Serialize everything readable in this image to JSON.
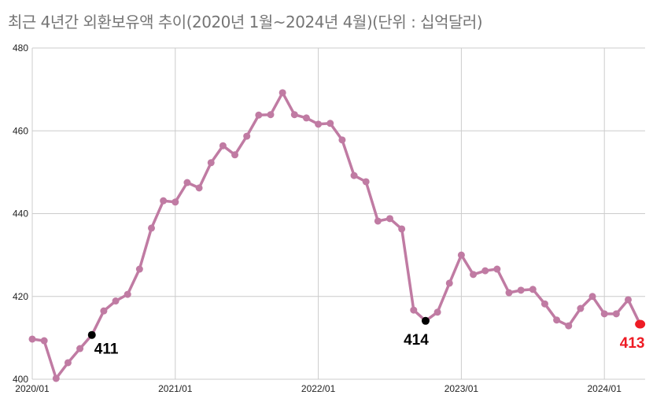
{
  "title": "최근 4년간 외환보유액 추이(2020년 1월~2024년 4월)(단위 : 십억달러)",
  "colors": {
    "line": "#c07ba3",
    "grid": "#cccccc",
    "highlight": "#000000",
    "latest": "#ee1c25"
  },
  "chart_data": {
    "type": "line",
    "title": "최근 4년간 외환보유액 추이(2020년 1월~2024년 4월)(단위 : 십억달러)",
    "xlabel": "",
    "ylabel": "",
    "ylim": [
      400,
      480
    ],
    "yticks": [
      400,
      420,
      440,
      460,
      480
    ],
    "xticks": [
      "2020/01",
      "2021/01",
      "2022/01",
      "2023/01",
      "2024/01"
    ],
    "grid": true,
    "legend": "none",
    "x": [
      "2020/01",
      "2020/02",
      "2020/03",
      "2020/04",
      "2020/05",
      "2020/06",
      "2020/07",
      "2020/08",
      "2020/09",
      "2020/10",
      "2020/11",
      "2020/12",
      "2021/01",
      "2021/02",
      "2021/03",
      "2021/04",
      "2021/05",
      "2021/06",
      "2021/07",
      "2021/08",
      "2021/09",
      "2021/10",
      "2021/11",
      "2021/12",
      "2022/01",
      "2022/02",
      "2022/03",
      "2022/04",
      "2022/05",
      "2022/06",
      "2022/07",
      "2022/08",
      "2022/09",
      "2022/10",
      "2022/11",
      "2022/12",
      "2023/01",
      "2023/02",
      "2023/03",
      "2023/04",
      "2023/05",
      "2023/06",
      "2023/07",
      "2023/08",
      "2023/09",
      "2023/10",
      "2023/11",
      "2023/12",
      "2024/01",
      "2024/02",
      "2024/03",
      "2024/04"
    ],
    "series": [
      {
        "name": "외환보유액",
        "values": [
          409.7,
          409.3,
          400.2,
          404.0,
          407.4,
          410.7,
          416.5,
          418.9,
          420.5,
          426.6,
          436.5,
          443.1,
          442.8,
          447.5,
          446.2,
          452.3,
          456.4,
          454.2,
          458.7,
          463.8,
          463.9,
          469.2,
          463.9,
          463.1,
          461.6,
          461.8,
          457.8,
          449.2,
          447.7,
          438.2,
          438.8,
          436.3,
          416.7,
          414.1,
          416.2,
          423.2,
          430.0,
          425.3,
          426.2,
          426.6,
          420.9,
          421.5,
          421.7,
          418.2,
          414.3,
          412.9,
          417.1,
          420.0,
          415.8,
          415.8,
          419.2,
          413.3
        ]
      }
    ],
    "annotations": [
      {
        "index": 5,
        "label": "411",
        "color": "#000000"
      },
      {
        "index": 33,
        "label": "414",
        "color": "#000000"
      },
      {
        "index": 51,
        "label": "413",
        "color": "#ee1c25"
      }
    ]
  }
}
